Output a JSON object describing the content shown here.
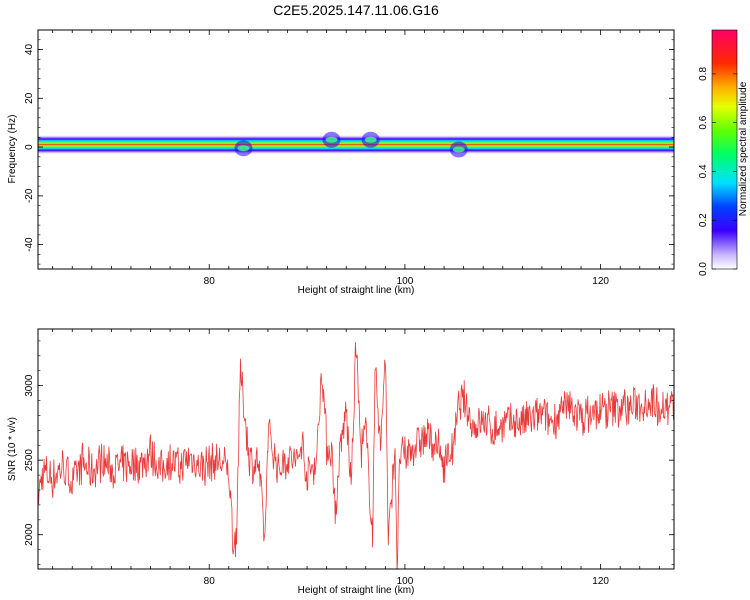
{
  "title": "C2E5.2025.147.11.06.G16",
  "chart_data": [
    {
      "type": "heatmap",
      "xlabel": "Height of straight line (km)",
      "ylabel": "Frequency (Hz)",
      "xlim": [
        62.5,
        127.5
      ],
      "ylim": [
        -50,
        48
      ],
      "xticks": [
        80,
        100,
        120
      ],
      "yticks": [
        -40,
        -20,
        0,
        20,
        40
      ],
      "band_center_hz": 1,
      "band_features": [
        {
          "x": 83.5,
          "shift_hz": -1.5,
          "note": "dip"
        },
        {
          "x": 92.5,
          "shift_hz": 2,
          "note": "spread"
        },
        {
          "x": 96.5,
          "shift_hz": 2,
          "note": "spread"
        },
        {
          "x": 105.5,
          "shift_hz": -2,
          "note": "dip"
        }
      ],
      "colorbar": {
        "label": "Normalized spectral amplitude",
        "range": [
          0.0,
          0.98
        ],
        "ticks": [
          "0.0",
          "0.2",
          "0.4",
          "0.6",
          "0.8"
        ],
        "tick_values": [
          0.0,
          0.2,
          0.4,
          0.6,
          0.8
        ]
      }
    },
    {
      "type": "line",
      "xlabel": "Height of straight line (km)",
      "ylabel": "SNR (10 * v/v)",
      "xlim": [
        62.5,
        127.5
      ],
      "ylim": [
        1770,
        3380
      ],
      "xticks": [
        80,
        100,
        120
      ],
      "yticks": [
        2000,
        2500,
        3000
      ],
      "color": "#e83a3a",
      "series": [
        {
          "x": [
            62.5,
            63,
            64,
            65,
            66,
            67,
            68,
            69,
            70,
            71,
            72,
            73,
            74,
            75,
            76,
            77,
            78,
            79,
            80,
            81,
            82,
            82.5,
            82.8,
            83.2,
            84,
            84.5,
            85,
            85.7,
            86,
            87,
            88,
            89,
            89.5,
            90,
            91,
            91.5,
            92,
            92.5,
            93,
            93.2,
            94,
            94.5,
            95,
            95.5,
            96,
            96.7,
            97,
            97.5,
            98,
            98.3,
            99,
            99.2,
            99.5,
            100,
            101,
            102,
            103,
            104,
            105,
            105.5,
            106,
            107,
            108,
            109,
            110,
            111,
            112,
            113,
            114,
            115,
            116,
            117,
            118,
            119,
            120,
            121,
            122,
            123,
            124,
            125,
            126,
            127,
            127.5
          ],
          "y": [
            2250,
            2420,
            2380,
            2460,
            2350,
            2480,
            2420,
            2500,
            2440,
            2450,
            2480,
            2470,
            2560,
            2430,
            2510,
            2440,
            2520,
            2460,
            2480,
            2490,
            2430,
            1900,
            2050,
            3100,
            2560,
            2450,
            2500,
            1950,
            2700,
            2440,
            2520,
            2480,
            2620,
            2380,
            2520,
            3150,
            2600,
            2550,
            2100,
            2450,
            2850,
            2300,
            3300,
            2550,
            2700,
            2000,
            3200,
            2550,
            3250,
            1950,
            2600,
            1800,
            2550,
            2520,
            2600,
            2650,
            2620,
            2480,
            2600,
            2850,
            2900,
            2720,
            2760,
            2700,
            2730,
            2760,
            2750,
            2780,
            2800,
            2760,
            2820,
            2850,
            2790,
            2800,
            2830,
            2840,
            2860,
            2850,
            2880,
            2900,
            2870,
            2860,
            2880
          ]
        }
      ]
    }
  ]
}
